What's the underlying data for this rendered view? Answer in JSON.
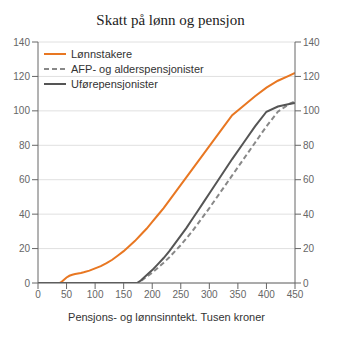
{
  "chart_data": {
    "type": "line",
    "title": "Skatt på lønn og pensjon",
    "x_label": "Pensjons- og lønnsinntekt. Tusen kroner",
    "xlim": [
      0,
      450
    ],
    "ylim": [
      0,
      140
    ],
    "xticks": [
      0,
      50,
      100,
      150,
      200,
      250,
      300,
      350,
      400,
      450
    ],
    "yticks": [
      0,
      20,
      40,
      60,
      80,
      100,
      120,
      140
    ],
    "y2lim": [
      0,
      140
    ],
    "y2ticks": [
      0,
      20,
      40,
      60,
      80,
      100,
      120,
      140
    ],
    "grid": true,
    "legend": "upper left",
    "series": [
      {
        "name": "Lønnstakere",
        "color": "#E87722",
        "line_style": "solid",
        "x": [
          0,
          38,
          40,
          45,
          50,
          55,
          60,
          65,
          70,
          75,
          80,
          90,
          100,
          110,
          120,
          130,
          140,
          150,
          160,
          170,
          180,
          190,
          200,
          210,
          220,
          230,
          240,
          250,
          260,
          270,
          280,
          300,
          320,
          340,
          360,
          380,
          400,
          420,
          440,
          450
        ],
        "values": [
          0,
          0,
          0.3,
          1.8,
          3.2,
          4.2,
          4.8,
          5.2,
          5.5,
          5.8,
          6.2,
          7.2,
          8.5,
          9.8,
          11.5,
          13.5,
          16.0,
          18.5,
          21.5,
          24.5,
          28.0,
          31.5,
          35.5,
          39.5,
          43.5,
          48.0,
          52.5,
          57.0,
          61.5,
          66.0,
          70.5,
          79.5,
          88.5,
          97.5,
          103.0,
          108.5,
          113.5,
          117.5,
          120.5,
          122.0
        ]
      },
      {
        "name": "AFP- og alderspensjonister",
        "color": "#888888",
        "line_style": "dashed",
        "x": [
          0,
          174,
          175,
          180,
          190,
          200,
          210,
          220,
          230,
          240,
          250,
          260,
          270,
          280,
          290,
          300,
          320,
          340,
          360,
          380,
          400,
          420,
          440,
          450
        ],
        "values": [
          0,
          0,
          0.2,
          1.2,
          3.5,
          6.0,
          8.8,
          11.8,
          15.0,
          18.5,
          22.0,
          26.0,
          30.0,
          34.5,
          39.0,
          43.5,
          53.0,
          62.5,
          72.0,
          81.5,
          91.0,
          99.5,
          104.0,
          105.5
        ]
      },
      {
        "name": "Uførepensjonister",
        "color": "#555555",
        "line_style": "solid",
        "x": [
          0,
          174,
          175,
          180,
          190,
          200,
          210,
          220,
          230,
          240,
          250,
          260,
          270,
          280,
          290,
          300,
          320,
          340,
          360,
          380,
          400,
          420,
          440,
          450
        ],
        "values": [
          0,
          0,
          0.2,
          1.5,
          4.5,
          7.5,
          11.0,
          14.5,
          18.5,
          23.0,
          27.5,
          32.0,
          37.0,
          42.0,
          47.0,
          52.0,
          62.0,
          72.0,
          81.5,
          91.0,
          99.5,
          102.5,
          104.0,
          104.5
        ]
      }
    ]
  }
}
